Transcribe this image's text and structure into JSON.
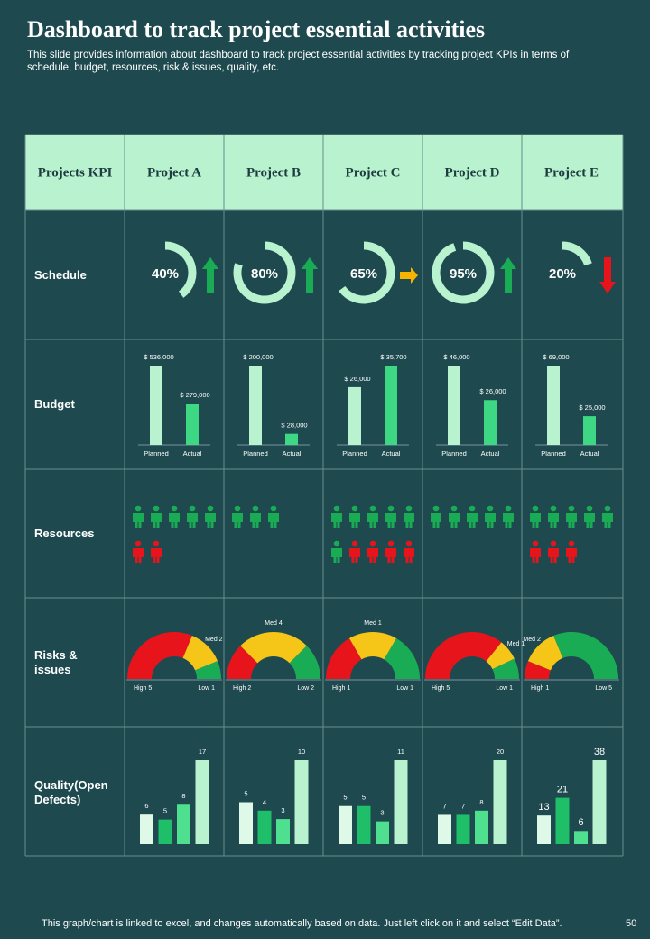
{
  "title": "Dashboard  to track  project  essential  activities",
  "subtitle": "This slide provides information about dashboard to track project essential activities by tracking project KPIs in terms of schedule, budget, resources, risk & issues, quality, etc.",
  "header": [
    "Projects KPI",
    "Project  A",
    "Project  B",
    "Project  C",
    "Project  D",
    "Project  E"
  ],
  "row_labels": [
    "Schedule",
    "Budget",
    "Resources",
    "Risks  &  issues",
    "Quality(Open Defects)"
  ],
  "colors": {
    "donut": "#b8f2cf",
    "up": "#1aac55",
    "right": "#f5b400",
    "down": "#e8141c",
    "planned": "#b8f2cf",
    "actual": "#3ed884",
    "staff": "#1aac55",
    "short": "#e8141c",
    "risk": [
      "#e8141c",
      "#f5c518",
      "#1aac55"
    ],
    "quality": [
      "#dff9e8",
      "#1fbf6a",
      "#4ee08e",
      "#b8f2cf"
    ]
  },
  "schedule": {
    "values": [
      40,
      80,
      65,
      95,
      20
    ],
    "value_labels": [
      "40%",
      "80%",
      "65%",
      "95%",
      "20%"
    ],
    "trends": [
      "up",
      "up",
      "right",
      "up",
      "down"
    ]
  },
  "budget": [
    {
      "categories": [
        "Planned",
        "Actual"
      ],
      "values": [
        536000,
        279000
      ],
      "value_labels": [
        "$ 536,000",
        "$ 279,000"
      ]
    },
    {
      "categories": [
        "Planned",
        "Actual"
      ],
      "values": [
        200000,
        28000
      ],
      "value_labels": [
        "$ 200,000",
        "$ 28,000"
      ]
    },
    {
      "categories": [
        "Planned",
        "Actual"
      ],
      "values": [
        26000,
        35700
      ],
      "value_labels": [
        "$ 26,000",
        "$ 35,700"
      ]
    },
    {
      "categories": [
        "Planned",
        "Actual"
      ],
      "values": [
        46000,
        26000
      ],
      "value_labels": [
        "$ 46,000",
        "$ 26,000"
      ]
    },
    {
      "categories": [
        "Planned",
        "Actual"
      ],
      "values": [
        69000,
        25000
      ],
      "value_labels": [
        "$ 69,000",
        "$ 25,000"
      ]
    }
  ],
  "resources": [
    {
      "green": 5,
      "red": 2
    },
    {
      "green": 3,
      "red": 0
    },
    {
      "green": 6,
      "red": 4
    },
    {
      "green": 5,
      "red": 0
    },
    {
      "green": 5,
      "red": 3
    }
  ],
  "risks": [
    {
      "values": [
        5,
        2,
        1
      ],
      "value_labels": [
        "High 5",
        "Med 2",
        "Low 1"
      ]
    },
    {
      "values": [
        2,
        4,
        2
      ],
      "value_labels": [
        "High 2",
        "Med 4",
        "Low 2"
      ]
    },
    {
      "values": [
        1,
        1,
        1
      ],
      "value_labels": [
        "High 1",
        "Med 1",
        "Low 1"
      ]
    },
    {
      "values": [
        5,
        1,
        1
      ],
      "value_labels": [
        "High 5",
        "Med 1",
        "Low 1"
      ]
    },
    {
      "values": [
        1,
        2,
        5
      ],
      "value_labels": [
        "High 1",
        "Med 2",
        "Low 5"
      ]
    }
  ],
  "quality": [
    {
      "values": [
        6,
        5,
        8,
        17
      ]
    },
    {
      "values": [
        5,
        4,
        3,
        10
      ]
    },
    {
      "values": [
        5,
        5,
        3,
        11
      ]
    },
    {
      "values": [
        7,
        7,
        8,
        20
      ]
    },
    {
      "values": [
        13,
        21,
        6,
        38
      ]
    }
  ],
  "footer": "This graph/chart is linked to excel,  and changes automatically based on data. Just left click on it and select “Edit Data”.",
  "page_number": "50"
}
